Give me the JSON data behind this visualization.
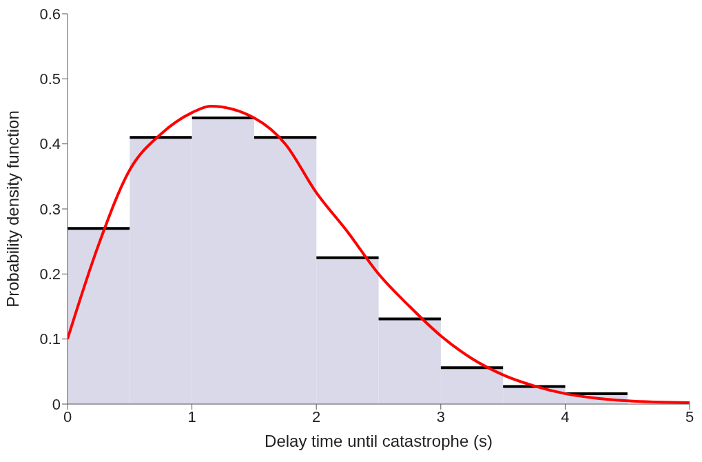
{
  "chart_data": {
    "type": "histogram",
    "xlabel": "Delay time until catastrophe (s)",
    "ylabel": "Probability density function",
    "bins": [
      0,
      0.5,
      1,
      1.5,
      2,
      2.5,
      3,
      3.5,
      4,
      4.5
    ],
    "values": [
      0.27,
      0.41,
      0.44,
      0.41,
      0.225,
      0.131,
      0.056,
      0.027,
      0.016
    ],
    "color": "#d9d9ea",
    "series": [
      {
        "type": "line",
        "color": "#ff0000",
        "x": [
          0,
          0.25,
          0.5,
          0.75,
          1,
          1.15,
          1.5,
          1.75,
          2,
          2.25,
          2.5,
          2.75,
          3,
          3.25,
          3.5,
          3.75,
          4,
          4.25,
          4.5,
          5
        ],
        "values": [
          0.1,
          0.245,
          0.36,
          0.415,
          0.448,
          0.458,
          0.44,
          0.4,
          0.325,
          0.265,
          0.2,
          0.15,
          0.105,
          0.07,
          0.045,
          0.028,
          0.016,
          0.009,
          0.005,
          0.002
        ]
      }
    ],
    "xlim": [
      0,
      5
    ],
    "ylim": [
      0,
      0.6
    ],
    "xticks": [
      0,
      1,
      2,
      3,
      4,
      5
    ],
    "yticks": [
      0,
      0.1,
      0.2,
      0.3,
      0.4,
      0.5,
      0.6
    ],
    "grid": false,
    "legend": false,
    "marker": "none"
  }
}
